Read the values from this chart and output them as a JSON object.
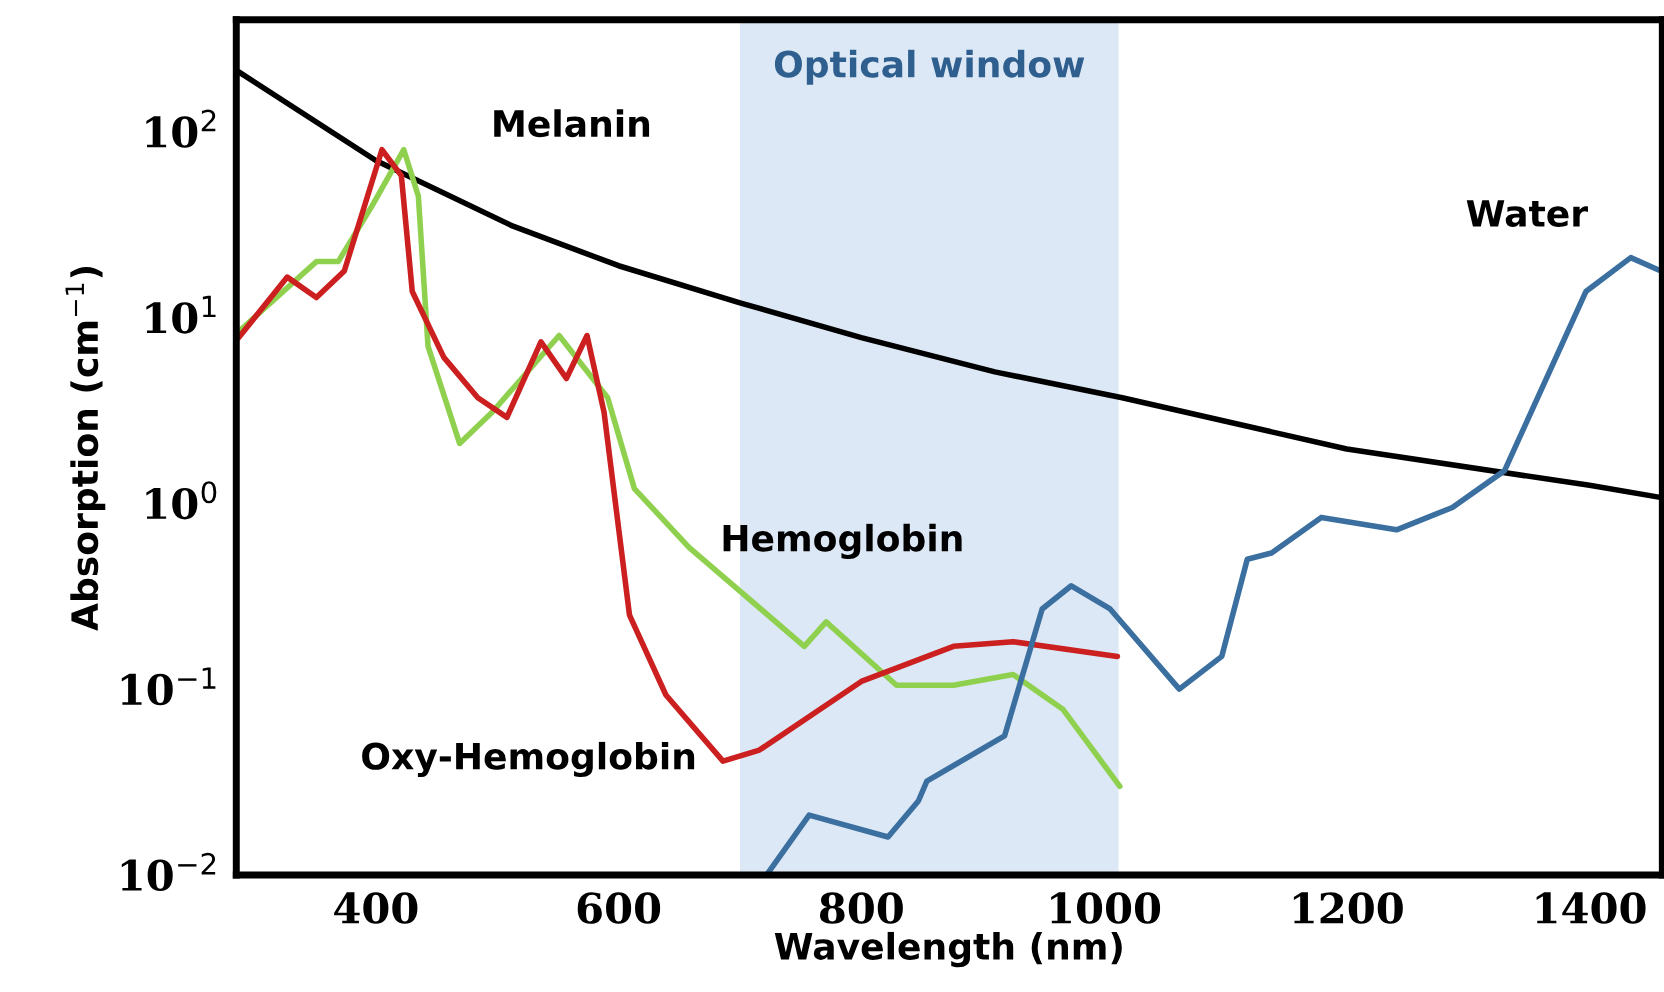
{
  "chart_data": {
    "type": "line",
    "xlabel": "Wavelength (nm)",
    "ylabel": "Absorption (cm$^{−1}$)",
    "log": "y",
    "xlim": [
      285,
      1460
    ],
    "xticks": [
      400,
      600,
      800,
      1000,
      1200,
      1400
    ],
    "ylim": [
      0.01,
      400
    ],
    "yticks": [
      {
        "value": 0.01,
        "label": "10$^{−2}$"
      },
      {
        "value": 0.1,
        "label": "10$^{−1}$"
      },
      {
        "value": 1,
        "label": "10$^{0}$"
      },
      {
        "value": 10,
        "label": "10$^{1}$"
      },
      {
        "value": 100,
        "label": "10$^{2}$"
      }
    ],
    "grid": false,
    "legend": false,
    "marker": "none",
    "line_style": "solid",
    "bands": [
      {
        "axis": "x",
        "from": 700,
        "to": 1012,
        "label": "Optical window",
        "color": "#dce8f5"
      }
    ],
    "series": [
      {
        "name": "Melanin",
        "color": "#000000",
        "x": [
          287,
          400,
          513,
          600,
          700,
          800,
          910,
          1015,
          1200,
          1400,
          1457
        ],
        "values": [
          210,
          70,
          31,
          19,
          12,
          7.8,
          5.1,
          3.7,
          1.96,
          1.25,
          1.08
        ]
      },
      {
        "name": "Hemoglobin",
        "color": "#8fd14f",
        "x": [
          287,
          351,
          369,
          397,
          423,
          435,
          443,
          469,
          496,
          551,
          591,
          613,
          658,
          753,
          771,
          829,
          876,
          925,
          966,
          1013
        ],
        "values": [
          8.4,
          20,
          20,
          40,
          80,
          45,
          7,
          2.1,
          3.1,
          8,
          3.7,
          1.2,
          0.58,
          0.17,
          0.23,
          0.105,
          0.105,
          0.12,
          0.078,
          0.03
        ]
      },
      {
        "name": "Oxy-Hemoglobin",
        "color": "#cc1f1f",
        "x": [
          287,
          327,
          351,
          374,
          405,
          421,
          430,
          456,
          484,
          508,
          536,
          557,
          574,
          588,
          609,
          639,
          686,
          716,
          800,
          876,
          925,
          1011
        ],
        "values": [
          7.8,
          16.5,
          12.8,
          17.8,
          80,
          58,
          13.8,
          6.1,
          3.7,
          2.9,
          7.4,
          4.7,
          8,
          3.1,
          0.25,
          0.093,
          0.041,
          0.047,
          0.11,
          0.17,
          0.18,
          0.15
        ]
      },
      {
        "name": "Water",
        "color": "#3a6fa0",
        "x": [
          722,
          757,
          822,
          847,
          854,
          918,
          949,
          973,
          1005,
          1062,
          1097,
          1118,
          1138,
          1179,
          1241,
          1287,
          1330,
          1397,
          1434,
          1457
        ],
        "values": [
          0.01,
          0.021,
          0.016,
          0.025,
          0.032,
          0.056,
          0.27,
          0.36,
          0.27,
          0.1,
          0.15,
          0.5,
          0.54,
          0.84,
          0.72,
          0.95,
          1.5,
          13.8,
          21,
          18
        ]
      }
    ]
  }
}
